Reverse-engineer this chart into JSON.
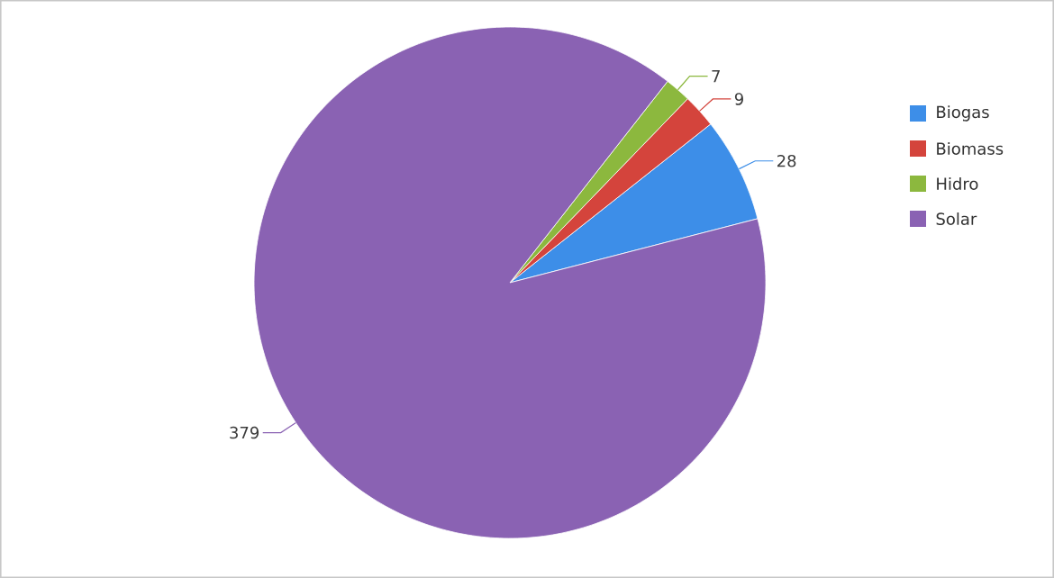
{
  "chart_data": {
    "type": "pie",
    "categories": [
      "Biogas",
      "Biomass",
      "Hidro",
      "Solar"
    ],
    "values": [
      28,
      9,
      7,
      379
    ],
    "colors": [
      "#3d8ee8",
      "#d4443c",
      "#8cb83e",
      "#8a62b3"
    ],
    "data_labels": true,
    "legend": "top right"
  }
}
